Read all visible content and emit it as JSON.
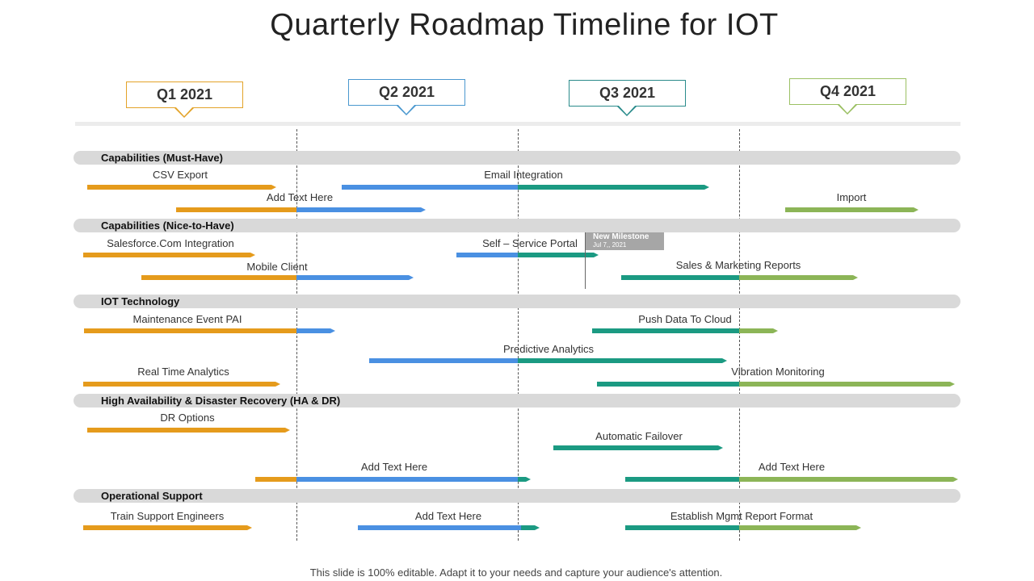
{
  "title": "Quarterly Roadmap Timeline for IOT",
  "colors": {
    "q1": "#e59b1c",
    "q2": "#4a90e2",
    "q3": "#1b9a82",
    "q4": "#8cb557",
    "q1_box": "#e3a329",
    "q2_box": "#4a98cf",
    "q3_box": "#2a8b8b",
    "q4_box": "#9bc063"
  },
  "quarters": [
    {
      "label": "Q1 2021"
    },
    {
      "label": "Q2 2021"
    },
    {
      "label": "Q3 2021"
    },
    {
      "label": "Q4 2021"
    }
  ],
  "categories": [
    {
      "label": "Capabilities (Must-Have)"
    },
    {
      "label": "Capabilities (Nice-to-Have)"
    },
    {
      "label": "IOT Technology"
    },
    {
      "label": "High Availability & Disaster Recovery (HA & DR)"
    },
    {
      "label": "Operational Support"
    }
  ],
  "tasks": [
    {
      "label": "CSV Export"
    },
    {
      "label": "Email Integration"
    },
    {
      "label": "Add Text Here"
    },
    {
      "label": "Import"
    },
    {
      "label": "Salesforce.Com  Integration"
    },
    {
      "label": "Self – Service Portal"
    },
    {
      "label": "Mobile Client"
    },
    {
      "label": "Sales & Marketing Reports"
    },
    {
      "label": "Maintenance Event PAI"
    },
    {
      "label": "Push Data To Cloud"
    },
    {
      "label": "Predictive Analytics"
    },
    {
      "label": "Real Time Analytics"
    },
    {
      "label": "Vibration Monitoring"
    },
    {
      "label": "DR Options"
    },
    {
      "label": "Automatic Failover"
    },
    {
      "label": "Add Text Here"
    },
    {
      "label": "Add Text Here"
    },
    {
      "label": "Train Support Engineers"
    },
    {
      "label": "Add Text Here"
    },
    {
      "label": "Establish Mgmt Report Format"
    }
  ],
  "milestone": {
    "title": "New Milestone",
    "date": "Jul 7,, 2021"
  },
  "footer": "This slide is 100% editable. Adapt it to your needs and capture your audience's attention."
}
